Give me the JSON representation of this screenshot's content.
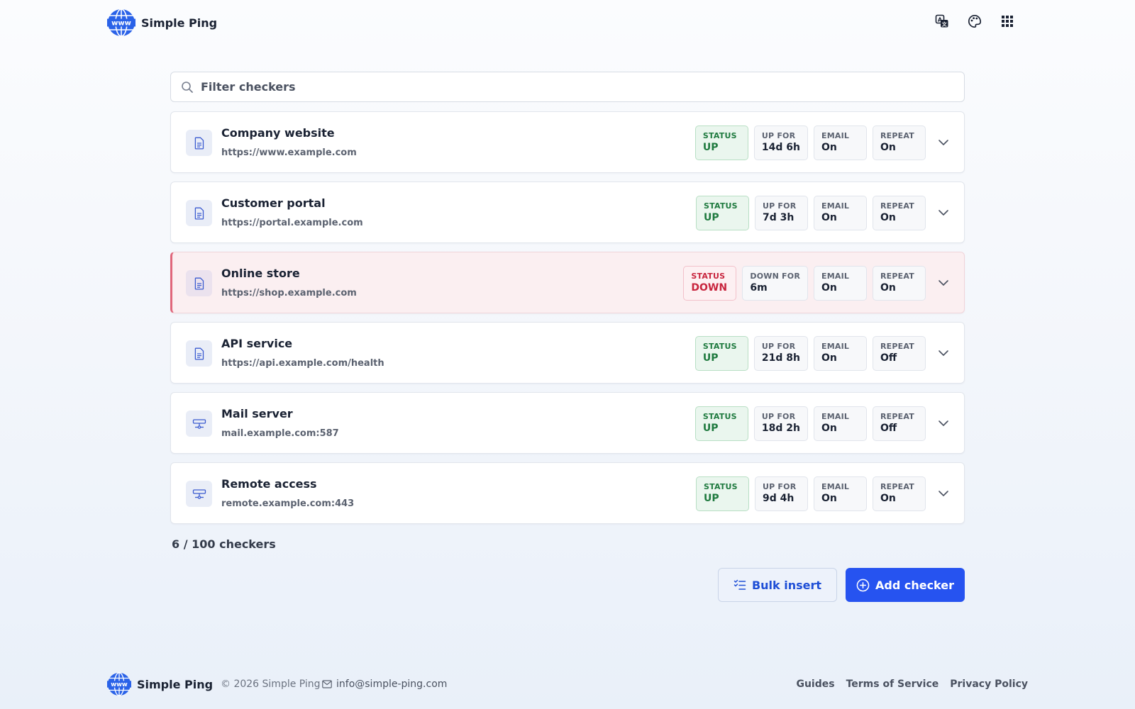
{
  "app": {
    "name": "Simple Ping"
  },
  "header": {
    "icons": [
      "translate-icon",
      "palette-icon",
      "apps-grid-icon"
    ]
  },
  "search": {
    "placeholder": "Filter checkers",
    "value": ""
  },
  "checkers": [
    {
      "title": "Company website",
      "url": "https://www.example.com",
      "icon": "document-icon",
      "state": "up",
      "status_label": "STATUS",
      "status_value": "UP",
      "duration_label": "UP FOR",
      "duration_value": "14d 6h",
      "email_label": "EMAIL",
      "email_value": "On",
      "repeat_label": "REPEAT",
      "repeat_value": "On"
    },
    {
      "title": "Customer portal",
      "url": "https://portal.example.com",
      "icon": "document-icon",
      "state": "up",
      "status_label": "STATUS",
      "status_value": "UP",
      "duration_label": "UP FOR",
      "duration_value": "7d 3h",
      "email_label": "EMAIL",
      "email_value": "On",
      "repeat_label": "REPEAT",
      "repeat_value": "On"
    },
    {
      "title": "Online store",
      "url": "https://shop.example.com",
      "icon": "document-icon",
      "state": "down",
      "status_label": "STATUS",
      "status_value": "DOWN",
      "duration_label": "DOWN FOR",
      "duration_value": "6m",
      "email_label": "EMAIL",
      "email_value": "On",
      "repeat_label": "REPEAT",
      "repeat_value": "On"
    },
    {
      "title": "API service",
      "url": "https://api.example.com/health",
      "icon": "document-icon",
      "state": "up",
      "status_label": "STATUS",
      "status_value": "UP",
      "duration_label": "UP FOR",
      "duration_value": "21d 8h",
      "email_label": "EMAIL",
      "email_value": "On",
      "repeat_label": "REPEAT",
      "repeat_value": "Off"
    },
    {
      "title": "Mail server",
      "url": "mail.example.com:587",
      "icon": "server-port-icon",
      "state": "up",
      "status_label": "STATUS",
      "status_value": "UP",
      "duration_label": "UP FOR",
      "duration_value": "18d 2h",
      "email_label": "EMAIL",
      "email_value": "On",
      "repeat_label": "REPEAT",
      "repeat_value": "Off"
    },
    {
      "title": "Remote access",
      "url": "remote.example.com:443",
      "icon": "server-port-icon",
      "state": "up",
      "status_label": "STATUS",
      "status_value": "UP",
      "duration_label": "UP FOR",
      "duration_value": "9d 4h",
      "email_label": "EMAIL",
      "email_value": "On",
      "repeat_label": "REPEAT",
      "repeat_value": "On"
    }
  ],
  "count_text": "6 / 100 checkers",
  "actions": {
    "bulk_insert_label": "Bulk insert",
    "add_checker_label": "Add checker"
  },
  "footer": {
    "brand": "Simple Ping",
    "copyright": "© 2026 Simple Ping",
    "email": "info@simple-ping.com",
    "links": [
      "Guides",
      "Terms of Service",
      "Privacy Policy"
    ]
  },
  "colors": {
    "accent": "#2653f0",
    "up": "#1f7a3f",
    "down": "#c8253e"
  }
}
